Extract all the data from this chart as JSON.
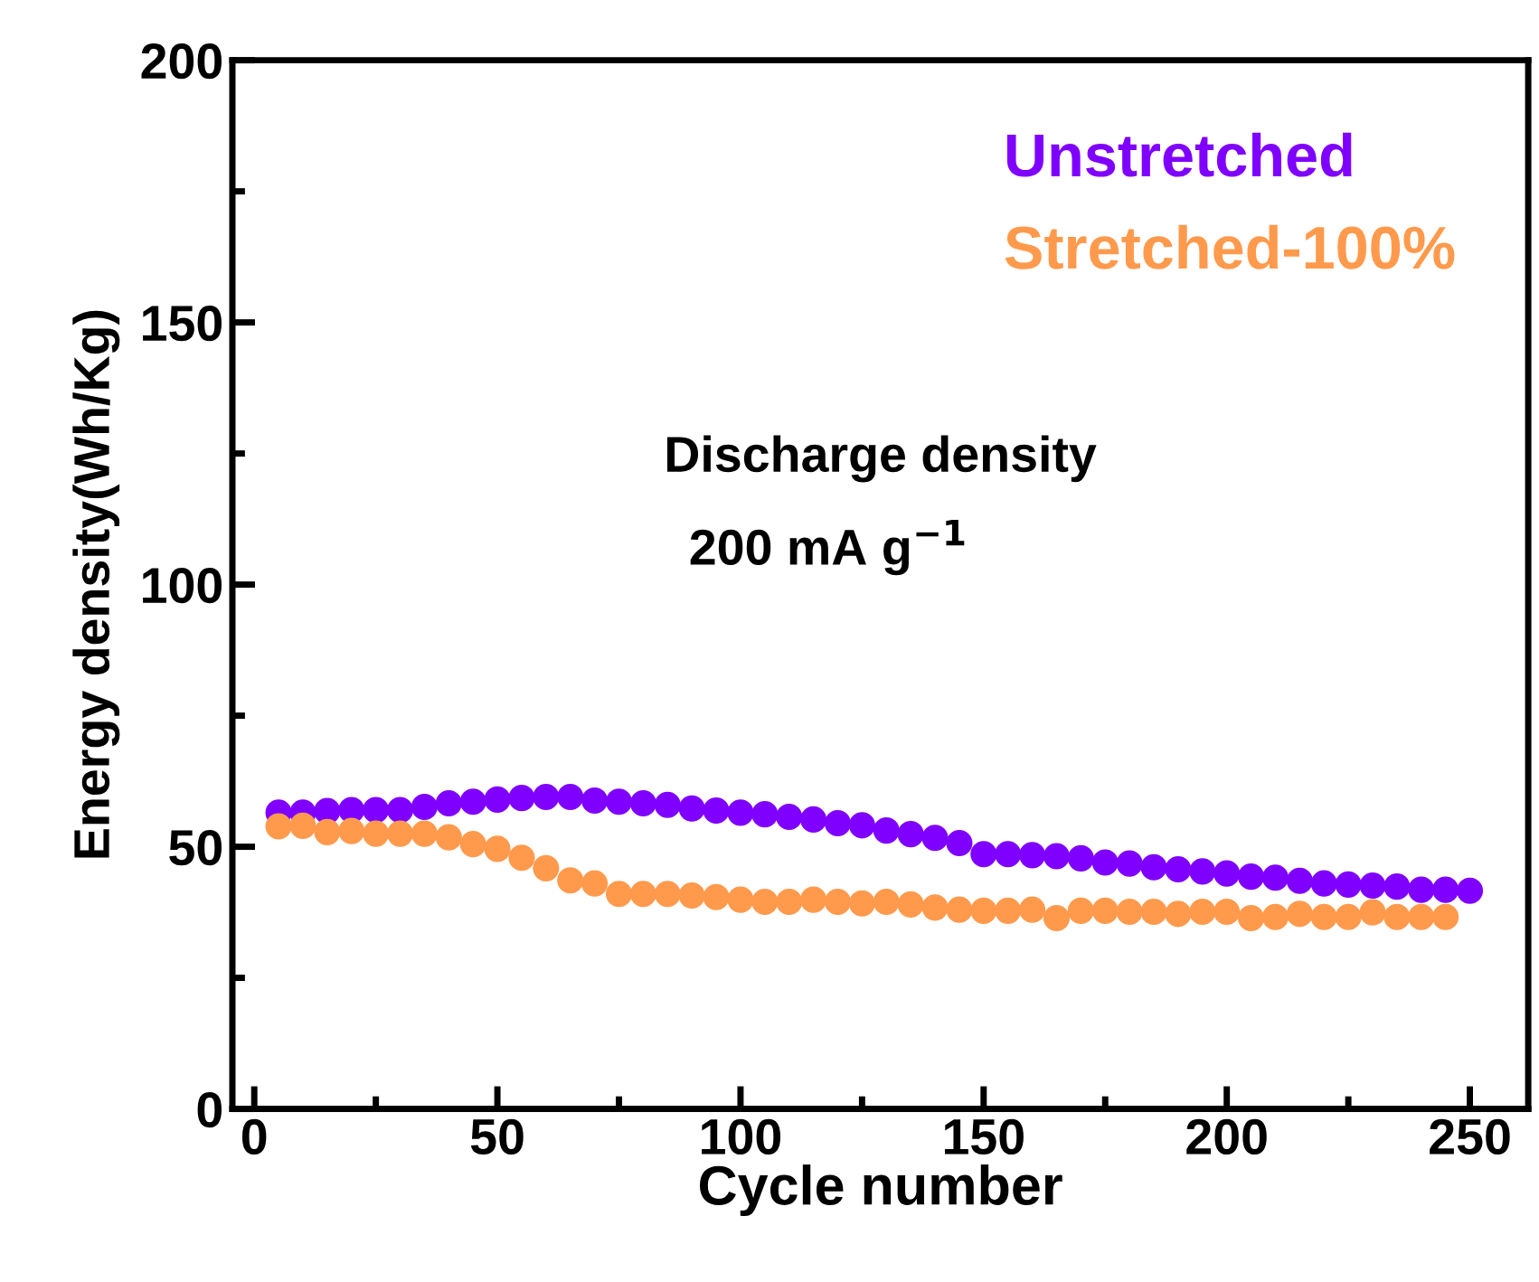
{
  "chart_data": {
    "type": "scatter",
    "xlabel": "Cycle number",
    "ylabel": "Energy density(Wh/Kg)",
    "annotations": [
      "Discharge density",
      "200 mA g$^{−1}$"
    ],
    "xlim": [
      -4.5,
      262
    ],
    "ylim": [
      0,
      200
    ],
    "xticks": [
      0,
      {
        "value": 25,
        "label": null
      },
      50,
      {
        "value": 75,
        "label": null
      },
      100,
      {
        "value": 125,
        "label": null
      },
      150,
      {
        "value": 175,
        "label": null
      },
      200,
      {
        "value": 225,
        "label": null
      },
      250
    ],
    "yticks": [
      0,
      {
        "value": 25,
        "label": null
      },
      50,
      {
        "value": 75,
        "label": null
      },
      100,
      {
        "value": 125,
        "label": null
      },
      150,
      {
        "value": 175,
        "label": null
      },
      200
    ],
    "marker": "circle",
    "legend": "top right",
    "grid": false,
    "series": [
      {
        "name": "Unstretched",
        "color": "#7f00ff",
        "x": [
          5,
          10,
          15,
          20,
          25,
          30,
          35,
          40,
          45,
          50,
          55,
          60,
          65,
          70,
          75,
          80,
          85,
          90,
          95,
          100,
          105,
          110,
          115,
          120,
          125,
          130,
          135,
          140,
          145,
          150,
          155,
          160,
          165,
          170,
          175,
          180,
          185,
          190,
          195,
          200,
          205,
          210,
          215,
          220,
          225,
          230,
          235,
          240,
          245,
          250
        ],
        "values": [
          56.5,
          56.5,
          56.8,
          57,
          57,
          57,
          57.6,
          58.3,
          58.6,
          59,
          59.3,
          59.5,
          59.5,
          58.8,
          58.6,
          58.3,
          58,
          57.3,
          56.9,
          56.5,
          56.2,
          55.7,
          55.2,
          54.5,
          54.1,
          53.1,
          52.4,
          51.7,
          50.7,
          48.6,
          48.6,
          48.4,
          48.2,
          47.8,
          47,
          46.8,
          46.1,
          45.7,
          45.3,
          44.9,
          44.3,
          44.1,
          43.5,
          43,
          42.8,
          42.6,
          42.4,
          41.8,
          41.8,
          41.6
        ]
      },
      {
        "name": "Stretched-100%",
        "color": "#ff9a4d",
        "x": [
          5,
          10,
          15,
          20,
          25,
          30,
          35,
          40,
          45,
          50,
          55,
          60,
          65,
          70,
          75,
          80,
          85,
          90,
          95,
          100,
          105,
          110,
          115,
          120,
          125,
          130,
          135,
          140,
          145,
          150,
          155,
          160,
          165,
          170,
          175,
          180,
          185,
          190,
          195,
          200,
          205,
          210,
          215,
          220,
          225,
          230,
          235,
          240,
          245
        ],
        "values": [
          53.9,
          54,
          52.8,
          53,
          52.5,
          52.5,
          52.5,
          51.8,
          50.5,
          49.6,
          47.9,
          45.9,
          43.6,
          43,
          41,
          41,
          41,
          40.7,
          40.4,
          39.9,
          39.5,
          39.5,
          39.9,
          39.5,
          39.2,
          39.5,
          39,
          38.4,
          38,
          37.8,
          37.8,
          38,
          36.4,
          37.8,
          37.8,
          37.6,
          37.6,
          37.2,
          37.6,
          37.6,
          36.4,
          36.6,
          37.2,
          36.6,
          36.6,
          37.5,
          36.6,
          36.6,
          36.6
        ]
      }
    ]
  }
}
